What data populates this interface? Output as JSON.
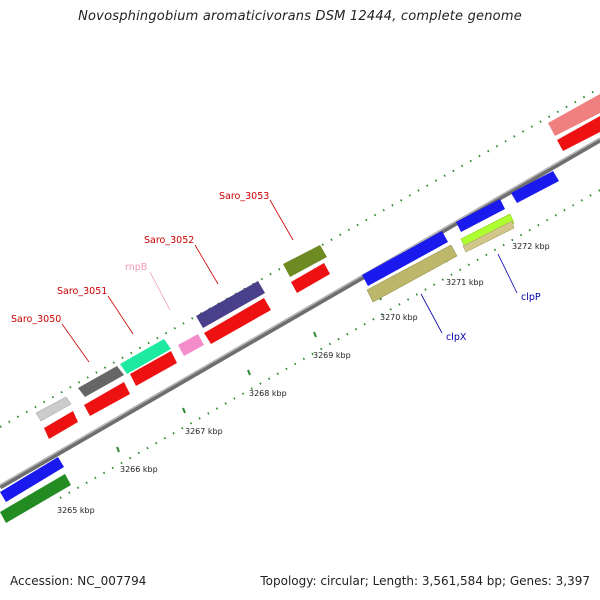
{
  "title": "Novosphingobium aromaticivorans DSM 12444, complete genome",
  "footer": {
    "accession": "Accession: NC_007794",
    "summary": "Topology: circular; Length: 3,561,584 bp; Genes: 3,397"
  },
  "ticks": [
    "3265 kbp",
    "3266 kbp",
    "3267 kbp",
    "3268 kbp",
    "3269 kbp",
    "3270 kbp",
    "3271 kbp",
    "3272 kbp"
  ],
  "genes": [
    {
      "name": "Saro_3050",
      "color": "#cc0000"
    },
    {
      "name": "Saro_3051",
      "color": "#cc0000"
    },
    {
      "name": "rnpB",
      "color": "#ee99bb"
    },
    {
      "name": "Saro_3052",
      "color": "#cc0000"
    },
    {
      "name": "Saro_3053",
      "color": "#cc0000"
    },
    {
      "name": "clpX",
      "color": "#0000aa"
    },
    {
      "name": "clpP",
      "color": "#0000aa"
    }
  ]
}
